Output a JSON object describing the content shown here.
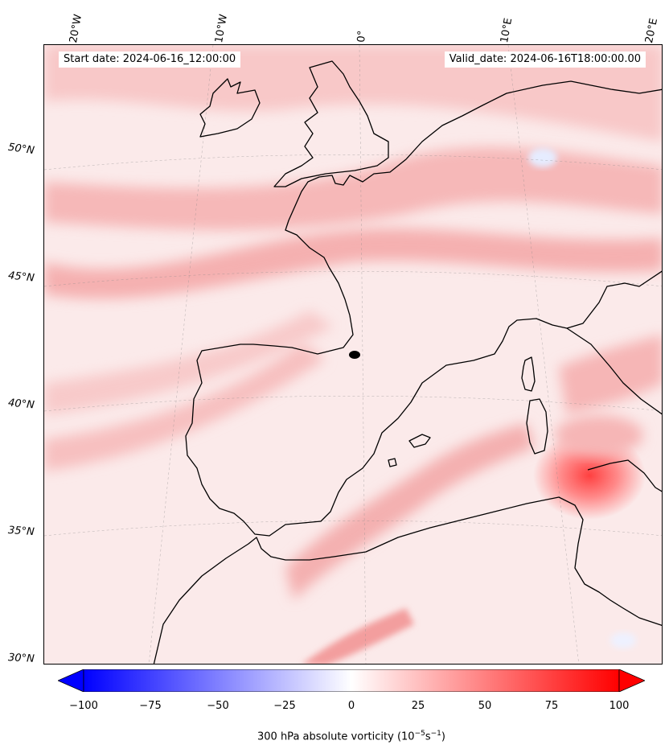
{
  "header": {
    "start_date": "Start date: 2024-06-16_12:00:00",
    "valid_date": "Valid_date: 2024-06-16T18:00:00.00"
  },
  "longitude_labels": [
    "20°W",
    "10°W",
    "0°",
    "10°E",
    "20°E"
  ],
  "latitude_labels": [
    "50°N",
    "45°N",
    "40°N",
    "35°N",
    "30°N"
  ],
  "colorbar": {
    "ticks": [
      "−100",
      "−75",
      "−50",
      "−25",
      "0",
      "25",
      "50",
      "75",
      "100"
    ],
    "label_text": "300 hPa absolute vorticity (10",
    "label_exp1": "−5",
    "label_mid": "s",
    "label_exp2": "−1",
    "label_end": ")",
    "min_color": "#0000ff",
    "mid_color": "#ffffff",
    "max_color": "#ff0000"
  }
}
